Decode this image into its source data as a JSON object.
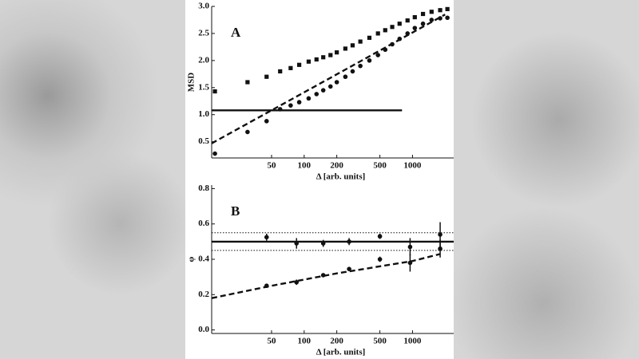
{
  "chart_data": [
    {
      "type": "scatter",
      "panel_label": "A",
      "ylabel": "MSD",
      "xlabel": "Δ [arb. units]",
      "xscale": "log",
      "xlim": [
        14,
        2400
      ],
      "xticks": [
        50,
        100,
        200,
        500,
        1000
      ],
      "ylim": [
        0.2,
        3.0
      ],
      "yticks": [
        0.5,
        {
          "value": 1,
          "label": "1.0"
        },
        1.5,
        {
          "value": 2,
          "label": "2.0"
        },
        2.5,
        {
          "value": 3,
          "label": "3.0"
        }
      ],
      "series": [
        {
          "marker": "square",
          "color": "#111111",
          "x": [
            15,
            30,
            45,
            60,
            75,
            90,
            110,
            130,
            150,
            175,
            200,
            240,
            280,
            330,
            400,
            480,
            560,
            650,
            760,
            900,
            1050,
            1250,
            1500,
            1800,
            2100
          ],
          "values": [
            1.43,
            1.6,
            1.7,
            1.8,
            1.86,
            1.92,
            1.98,
            2.02,
            2.06,
            2.1,
            2.15,
            2.22,
            2.28,
            2.35,
            2.42,
            2.5,
            2.56,
            2.62,
            2.68,
            2.74,
            2.8,
            2.86,
            2.9,
            2.93,
            2.95
          ]
        },
        {
          "marker": "circle",
          "color": "#111111",
          "x": [
            15,
            30,
            45,
            60,
            75,
            90,
            110,
            130,
            150,
            175,
            200,
            240,
            280,
            330,
            400,
            480,
            560,
            650,
            760,
            900,
            1050,
            1250,
            1500,
            1800,
            2100
          ],
          "values": [
            0.28,
            0.68,
            0.88,
            1.1,
            1.17,
            1.23,
            1.3,
            1.38,
            1.45,
            1.52,
            1.6,
            1.7,
            1.8,
            1.9,
            2.0,
            2.1,
            2.2,
            2.3,
            2.4,
            2.5,
            2.6,
            2.68,
            2.75,
            2.78,
            2.79
          ]
        }
      ],
      "lines": [
        {
          "style": "dashed",
          "x": [
            14,
            2000
          ],
          "values": [
            0.47,
            2.85
          ]
        },
        {
          "style": "solid",
          "x": [
            14,
            800
          ],
          "values": [
            1.08,
            1.08
          ]
        }
      ]
    },
    {
      "type": "scatter",
      "panel_label": "B",
      "ylabel": "φ",
      "xlabel": "Δ [arb. units]",
      "xscale": "log",
      "xlim": [
        14,
        2400
      ],
      "xticks": [
        50,
        100,
        200,
        500,
        1000
      ],
      "ylim": [
        -0.02,
        0.82
      ],
      "yticks": [
        {
          "value": 0,
          "label": "0.0"
        },
        0.2,
        0.4,
        0.6,
        0.8
      ],
      "series": [
        {
          "marker": "circle",
          "color": "#111111",
          "x": [
            45,
            85,
            150,
            260,
            500,
            950,
            1800
          ],
          "values": [
            0.525,
            0.49,
            0.49,
            0.5,
            0.53,
            0.47,
            0.54
          ],
          "errors": [
            0.02,
            0.03,
            0.02,
            0.02,
            0.015,
            0.05,
            0.07
          ]
        },
        {
          "marker": "circle",
          "color": "#111111",
          "x": [
            45,
            85,
            150,
            260,
            500,
            950,
            1800
          ],
          "values": [
            0.25,
            0.27,
            0.31,
            0.345,
            0.4,
            0.38,
            0.46
          ],
          "errors": [
            0.01,
            0.015,
            0.01,
            0.01,
            0.015,
            0.05,
            0.05
          ]
        }
      ],
      "lines": [
        {
          "style": "solid",
          "x": [
            14,
            2400
          ],
          "values": [
            0.5,
            0.5
          ]
        },
        {
          "style": "dotted",
          "x": [
            14,
            2400
          ],
          "values": [
            0.55,
            0.55
          ]
        },
        {
          "style": "dotted",
          "x": [
            14,
            2400
          ],
          "values": [
            0.45,
            0.45
          ]
        },
        {
          "style": "dashed",
          "x": [
            14,
            50,
            200,
            1000,
            1800
          ],
          "values": [
            0.18,
            0.25,
            0.32,
            0.39,
            0.43
          ]
        }
      ]
    }
  ]
}
